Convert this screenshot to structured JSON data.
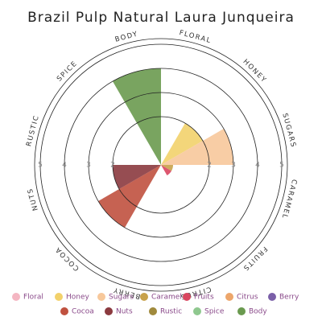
{
  "chart_data": {
    "type": "polar-area",
    "title": "Brazil Pulp Natural Laura Junqueira",
    "categories": [
      "Floral",
      "Honey",
      "Sugars",
      "Caramel",
      "Fruits",
      "Citrus",
      "Berry",
      "Cocoa",
      "Nuts",
      "Rustic",
      "Spice",
      "Body"
    ],
    "values": [
      0,
      2,
      3,
      0.5,
      0.5,
      0,
      0,
      3,
      2,
      0,
      0,
      4
    ],
    "colors": [
      "#f4b6c2",
      "#f2d16b",
      "#f7c89b",
      "#c8a24a",
      "#d9455f",
      "#eda66b",
      "#7a5fa8",
      "#c0513f",
      "#8b3a3f",
      "#a08a3c",
      "#8fc88f",
      "#6a9a4f"
    ],
    "rlim": [
      0,
      5
    ],
    "rticks": [
      2,
      3,
      4,
      5
    ]
  }
}
